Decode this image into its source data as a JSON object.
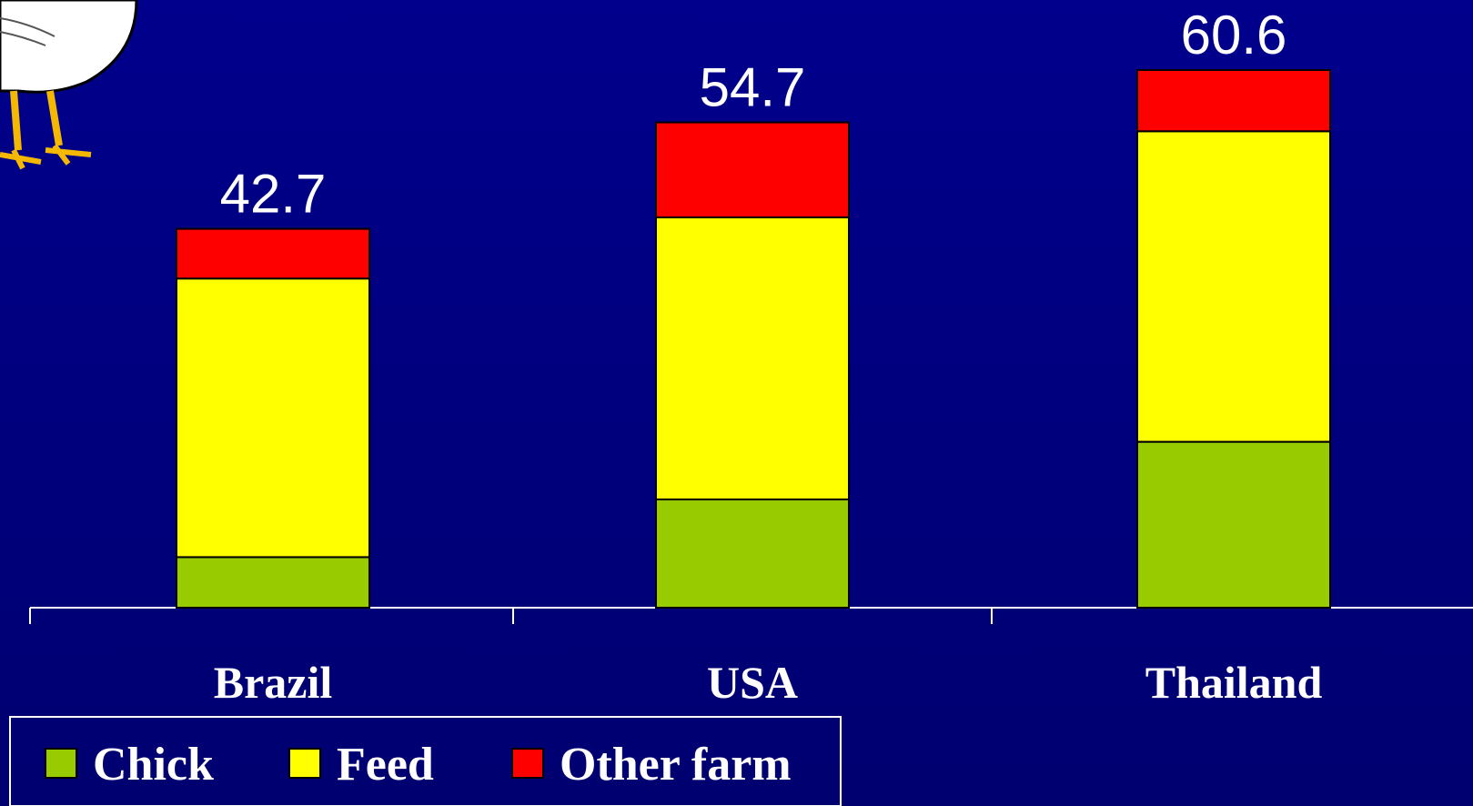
{
  "chart_data": {
    "type": "stacked-bar",
    "categories": [
      "Brazil",
      "USA",
      "Thailand"
    ],
    "series": [
      {
        "name": "Chick",
        "color": "#99cc00",
        "values": [
          5.7,
          12.2,
          18.7
        ]
      },
      {
        "name": "Feed",
        "color": "#ffff00",
        "values": [
          31.4,
          31.8,
          35.0
        ]
      },
      {
        "name": "Other farm",
        "color": "#ff0000",
        "values": [
          5.6,
          10.7,
          6.9
        ]
      }
    ],
    "totals": [
      42.7,
      54.7,
      60.6
    ]
  }
}
